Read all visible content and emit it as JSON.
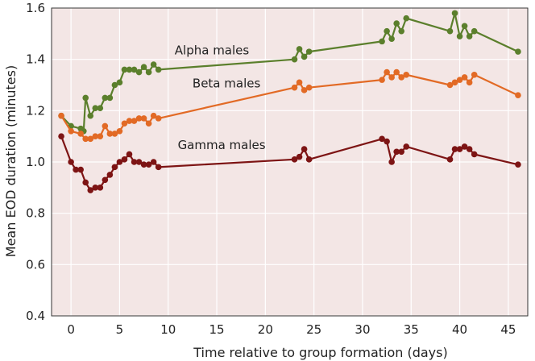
{
  "chart_data": {
    "type": "line",
    "title": "",
    "xlabel": "Time relative to group formation (days)",
    "ylabel": "Mean EOD duration (minutes)",
    "xlim": [
      -2,
      47
    ],
    "ylim": [
      0.4,
      1.6
    ],
    "x_ticks": [
      0,
      5,
      10,
      15,
      20,
      25,
      30,
      35,
      40,
      45
    ],
    "y_ticks": [
      "0.4",
      "0.6",
      "0.8",
      "1.0",
      "1.2",
      "1.4",
      "1.6"
    ],
    "grid": true,
    "background_color": "#f3e6e5",
    "series": [
      {
        "name": "Alpha males",
        "color": "#5b7f2c",
        "label_at": [
          14.5,
          1.42
        ],
        "points": [
          [
            -1,
            1.18
          ],
          [
            0,
            1.14
          ],
          [
            1,
            1.13
          ],
          [
            1.3,
            1.12
          ],
          [
            1.5,
            1.25
          ],
          [
            2,
            1.18
          ],
          [
            2.5,
            1.21
          ],
          [
            3,
            1.21
          ],
          [
            3.5,
            1.25
          ],
          [
            4,
            1.25
          ],
          [
            4.5,
            1.3
          ],
          [
            5,
            1.31
          ],
          [
            5.5,
            1.36
          ],
          [
            6,
            1.36
          ],
          [
            6.5,
            1.36
          ],
          [
            7,
            1.35
          ],
          [
            7.5,
            1.37
          ],
          [
            8,
            1.35
          ],
          [
            8.5,
            1.38
          ],
          [
            9,
            1.36
          ],
          [
            23,
            1.4
          ],
          [
            23.5,
            1.44
          ],
          [
            24,
            1.41
          ],
          [
            24.5,
            1.43
          ],
          [
            32,
            1.47
          ],
          [
            32.5,
            1.51
          ],
          [
            33,
            1.48
          ],
          [
            33.5,
            1.54
          ],
          [
            34,
            1.51
          ],
          [
            34.5,
            1.56
          ],
          [
            39,
            1.51
          ],
          [
            39.5,
            1.58
          ],
          [
            40,
            1.49
          ],
          [
            40.5,
            1.53
          ],
          [
            41,
            1.49
          ],
          [
            41.5,
            1.51
          ],
          [
            46,
            1.43
          ]
        ]
      },
      {
        "name": "Beta males",
        "color": "#e26a25",
        "label_at": [
          16,
          1.29
        ],
        "points": [
          [
            -1,
            1.18
          ],
          [
            0,
            1.12
          ],
          [
            1,
            1.11
          ],
          [
            1.5,
            1.09
          ],
          [
            2,
            1.09
          ],
          [
            2.5,
            1.1
          ],
          [
            3,
            1.1
          ],
          [
            3.5,
            1.14
          ],
          [
            4,
            1.11
          ],
          [
            4.5,
            1.11
          ],
          [
            5,
            1.12
          ],
          [
            5.5,
            1.15
          ],
          [
            6,
            1.16
          ],
          [
            6.5,
            1.16
          ],
          [
            7,
            1.17
          ],
          [
            7.5,
            1.17
          ],
          [
            8,
            1.15
          ],
          [
            8.5,
            1.18
          ],
          [
            9,
            1.17
          ],
          [
            23,
            1.29
          ],
          [
            23.5,
            1.31
          ],
          [
            24,
            1.28
          ],
          [
            24.5,
            1.29
          ],
          [
            32,
            1.32
          ],
          [
            32.5,
            1.35
          ],
          [
            33,
            1.33
          ],
          [
            33.5,
            1.35
          ],
          [
            34,
            1.33
          ],
          [
            34.5,
            1.34
          ],
          [
            39,
            1.3
          ],
          [
            39.5,
            1.31
          ],
          [
            40,
            1.32
          ],
          [
            40.5,
            1.33
          ],
          [
            41,
            1.31
          ],
          [
            41.5,
            1.34
          ],
          [
            46,
            1.26
          ]
        ]
      },
      {
        "name": "Gamma males",
        "color": "#7d1414",
        "label_at": [
          15.5,
          1.05
        ],
        "points": [
          [
            -1,
            1.1
          ],
          [
            0,
            1.0
          ],
          [
            0.5,
            0.97
          ],
          [
            1,
            0.97
          ],
          [
            1.5,
            0.92
          ],
          [
            2,
            0.89
          ],
          [
            2.5,
            0.9
          ],
          [
            3,
            0.9
          ],
          [
            3.5,
            0.93
          ],
          [
            4,
            0.95
          ],
          [
            4.5,
            0.98
          ],
          [
            5,
            1.0
          ],
          [
            5.5,
            1.01
          ],
          [
            6,
            1.03
          ],
          [
            6.5,
            1.0
          ],
          [
            7,
            1.0
          ],
          [
            7.5,
            0.99
          ],
          [
            8,
            0.99
          ],
          [
            8.5,
            1.0
          ],
          [
            9,
            0.98
          ],
          [
            23,
            1.01
          ],
          [
            23.5,
            1.02
          ],
          [
            24,
            1.05
          ],
          [
            24.5,
            1.01
          ],
          [
            32,
            1.09
          ],
          [
            32.5,
            1.08
          ],
          [
            33,
            1.0
          ],
          [
            33.5,
            1.04
          ],
          [
            34,
            1.04
          ],
          [
            34.5,
            1.06
          ],
          [
            39,
            1.01
          ],
          [
            39.5,
            1.05
          ],
          [
            40,
            1.05
          ],
          [
            40.5,
            1.06
          ],
          [
            41,
            1.05
          ],
          [
            41.5,
            1.03
          ],
          [
            46,
            0.99
          ]
        ]
      }
    ]
  }
}
